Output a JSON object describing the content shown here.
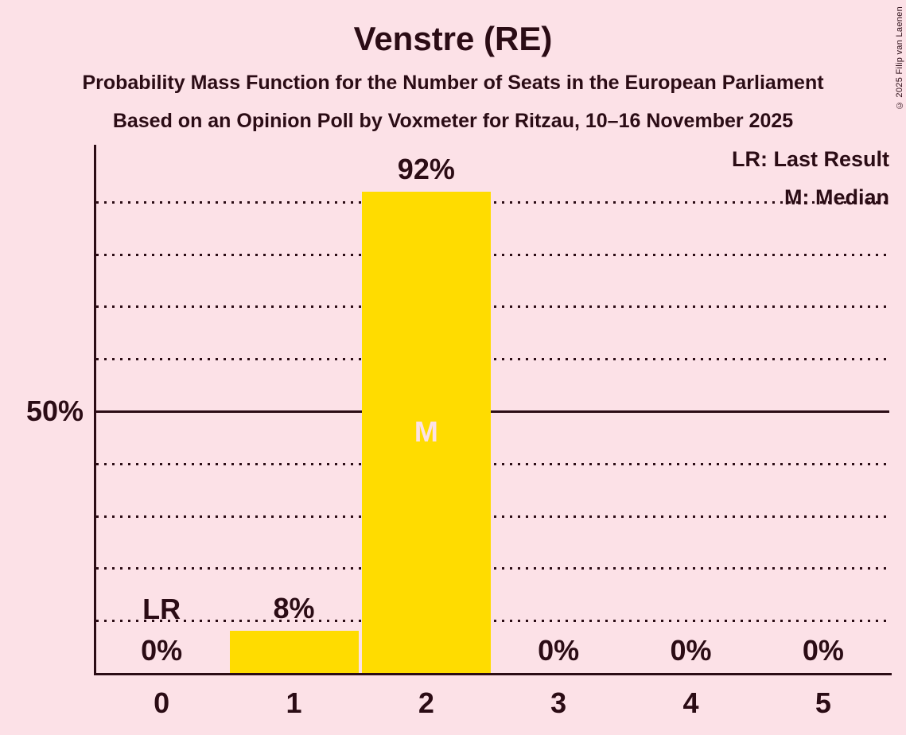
{
  "header": {
    "title": "Venstre (RE)",
    "subtitle": "Probability Mass Function for the Number of Seats in the European Parliament",
    "poll_info": "Based on an Opinion Poll by Voxmeter for Ritzau, 10–16 November 2025"
  },
  "copyright": "© 2025 Filip van Laenen",
  "legend": {
    "last_result": "LR: Last Result",
    "median": "M: Median"
  },
  "colors": {
    "background": "#fce1e7",
    "bar": "#ffdc00",
    "text": "#2b0c15",
    "median_label": "#fce1e7"
  },
  "chart_data": {
    "type": "bar",
    "title": "Venstre (RE)",
    "categories": [
      "0",
      "1",
      "2",
      "3",
      "4",
      "5"
    ],
    "values": [
      0,
      8,
      92,
      0,
      0,
      0
    ],
    "value_labels": [
      "0%",
      "8%",
      "92%",
      "0%",
      "0%",
      "0%"
    ],
    "ylim": [
      0,
      100
    ],
    "y_tick": {
      "value": 50,
      "label": "50%"
    },
    "gridlines": {
      "dotted_percents": [
        10,
        20,
        30,
        40,
        60,
        70,
        80,
        90
      ],
      "solid_percent": 50
    },
    "annotations": [
      {
        "category": "0",
        "marker": "LR"
      },
      {
        "category": "2",
        "marker": "M"
      }
    ],
    "legend_position": "top-right",
    "grid": true
  }
}
